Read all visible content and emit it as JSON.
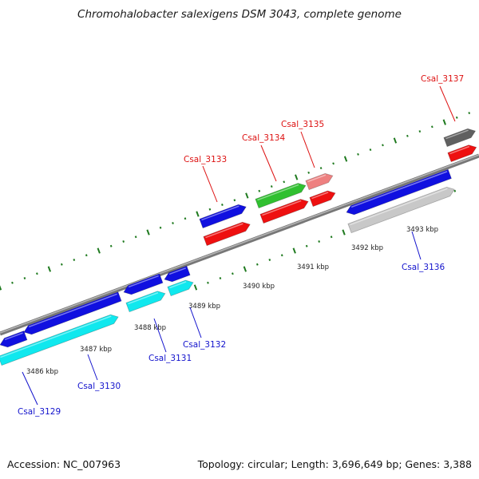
{
  "title": "Chromohalobacter salexigens DSM 3043, complete genome",
  "footer": {
    "accession": "Accession: NC_007963",
    "summary": "Topology: circular; Length: 3,696,649 bp; Genes: 3,388"
  },
  "colors": {
    "backbone": "#8a8a8a",
    "tick": "#1f7a1f",
    "label_top": "#dd1111",
    "label_bottom": "#1111cc"
  },
  "kbp_labels": [
    "3486 kbp",
    "3487 kbp",
    "3488 kbp",
    "3489 kbp",
    "3490 kbp",
    "3491 kbp",
    "3492 kbp",
    "3493 kbp"
  ],
  "genes": [
    {
      "id": "Csal_3129",
      "label_color": "#1111cc"
    },
    {
      "id": "Csal_3130",
      "label_color": "#1111cc"
    },
    {
      "id": "Csal_3131",
      "label_color": "#1111cc"
    },
    {
      "id": "Csal_3132",
      "label_color": "#1111cc"
    },
    {
      "id": "Csal_3133",
      "label_color": "#dd1111"
    },
    {
      "id": "Csal_3134",
      "label_color": "#dd1111"
    },
    {
      "id": "Csal_3135",
      "label_color": "#dd1111"
    },
    {
      "id": "Csal_3136",
      "label_color": "#1111cc"
    },
    {
      "id": "Csal_3137",
      "label_color": "#dd1111"
    }
  ]
}
